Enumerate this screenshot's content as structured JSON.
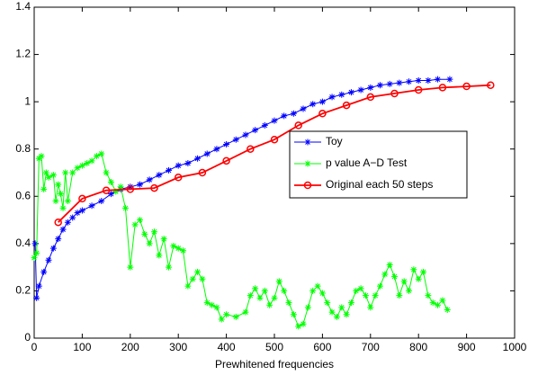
{
  "chart_data": {
    "type": "line",
    "xlabel": "Prewhitened frequencies",
    "xlim": [
      0,
      1000
    ],
    "xticks": [
      0,
      100,
      200,
      300,
      400,
      500,
      600,
      700,
      800,
      900,
      1000
    ],
    "ylim": [
      0,
      1.4
    ],
    "yticks": [
      0,
      0.2,
      0.4,
      0.6,
      0.8,
      1,
      1.2,
      1.4
    ],
    "legend": "right",
    "series": [
      {
        "name": "Toy",
        "color": "#0000ff",
        "marker": "star",
        "x": [
          2,
          5,
          10,
          20,
          30,
          40,
          50,
          60,
          70,
          80,
          90,
          100,
          120,
          140,
          160,
          180,
          200,
          220,
          240,
          260,
          280,
          300,
          320,
          340,
          360,
          380,
          400,
          420,
          440,
          460,
          480,
          500,
          520,
          540,
          560,
          580,
          600,
          620,
          640,
          660,
          680,
          700,
          720,
          740,
          760,
          780,
          800,
          820,
          840,
          865
        ],
        "values": [
          0.4,
          0.17,
          0.22,
          0.28,
          0.33,
          0.38,
          0.42,
          0.46,
          0.49,
          0.51,
          0.53,
          0.54,
          0.56,
          0.58,
          0.61,
          0.63,
          0.64,
          0.65,
          0.67,
          0.69,
          0.71,
          0.73,
          0.74,
          0.76,
          0.78,
          0.8,
          0.82,
          0.84,
          0.86,
          0.88,
          0.9,
          0.92,
          0.94,
          0.95,
          0.97,
          0.99,
          1.0,
          1.02,
          1.03,
          1.04,
          1.05,
          1.06,
          1.07,
          1.075,
          1.08,
          1.085,
          1.09,
          1.09,
          1.095,
          1.095
        ]
      },
      {
        "name": "p value A−D Test",
        "color": "#00ff00",
        "marker": "star",
        "x": [
          0,
          5,
          10,
          15,
          20,
          25,
          30,
          40,
          45,
          50,
          55,
          60,
          65,
          70,
          80,
          90,
          100,
          110,
          120,
          130,
          140,
          150,
          160,
          170,
          180,
          190,
          200,
          210,
          220,
          230,
          240,
          250,
          260,
          270,
          280,
          290,
          300,
          310,
          320,
          330,
          340,
          350,
          360,
          370,
          380,
          390,
          400,
          420,
          440,
          450,
          460,
          470,
          480,
          490,
          500,
          510,
          520,
          530,
          540,
          550,
          560,
          570,
          580,
          590,
          600,
          610,
          620,
          630,
          640,
          650,
          660,
          670,
          680,
          690,
          700,
          710,
          720,
          730,
          740,
          750,
          760,
          770,
          780,
          790,
          800,
          810,
          820,
          830,
          840,
          850,
          860
        ],
        "values": [
          0.34,
          0.36,
          0.76,
          0.77,
          0.63,
          0.7,
          0.68,
          0.69,
          0.58,
          0.65,
          0.61,
          0.55,
          0.7,
          0.58,
          0.7,
          0.72,
          0.73,
          0.74,
          0.75,
          0.77,
          0.78,
          0.7,
          0.66,
          0.62,
          0.64,
          0.55,
          0.3,
          0.48,
          0.5,
          0.44,
          0.4,
          0.45,
          0.35,
          0.42,
          0.3,
          0.39,
          0.38,
          0.37,
          0.22,
          0.25,
          0.28,
          0.25,
          0.15,
          0.14,
          0.13,
          0.08,
          0.1,
          0.09,
          0.11,
          0.18,
          0.21,
          0.17,
          0.2,
          0.14,
          0.17,
          0.24,
          0.2,
          0.15,
          0.1,
          0.05,
          0.06,
          0.13,
          0.2,
          0.22,
          0.19,
          0.15,
          0.11,
          0.09,
          0.13,
          0.1,
          0.15,
          0.2,
          0.21,
          0.18,
          0.13,
          0.18,
          0.22,
          0.27,
          0.31,
          0.26,
          0.18,
          0.24,
          0.2,
          0.29,
          0.25,
          0.28,
          0.18,
          0.15,
          0.14,
          0.16,
          0.12
        ]
      },
      {
        "name": "Original each 50 steps",
        "color": "#ff0000",
        "marker": "circle",
        "x": [
          50,
          100,
          150,
          200,
          250,
          300,
          350,
          400,
          450,
          500,
          550,
          600,
          650,
          700,
          750,
          800,
          850,
          900,
          950
        ],
        "values": [
          0.49,
          0.59,
          0.625,
          0.63,
          0.635,
          0.68,
          0.7,
          0.75,
          0.8,
          0.84,
          0.9,
          0.95,
          0.985,
          1.02,
          1.035,
          1.05,
          1.06,
          1.065,
          1.07
        ]
      }
    ]
  }
}
